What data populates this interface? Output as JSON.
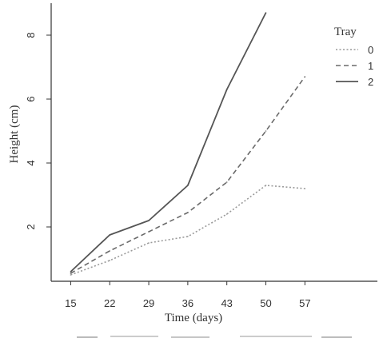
{
  "chart_data": {
    "type": "line",
    "title": "",
    "xlabel": "Time (days)",
    "ylabel": "Height (cm)",
    "x": [
      15,
      22,
      29,
      36,
      43,
      50,
      57
    ],
    "x_tick_labels": [
      "15",
      "22",
      "29",
      "36",
      "43",
      "50",
      "57"
    ],
    "y_ticks": [
      2,
      4,
      6,
      8
    ],
    "y_tick_labels": [
      "2",
      "4",
      "6",
      "8"
    ],
    "xlim": [
      11.5,
      70
    ],
    "ylim": [
      0.3,
      9
    ],
    "grid": false,
    "legend": {
      "title": "Tray",
      "placement": "right"
    },
    "series": [
      {
        "name": "0",
        "line_style": "dotted",
        "color": "#9a9a9a",
        "x": [
          15,
          22,
          29,
          36,
          43,
          50,
          57
        ],
        "values": [
          0.5,
          0.95,
          1.5,
          1.7,
          2.4,
          3.3,
          3.2
        ]
      },
      {
        "name": "1",
        "line_style": "dashed",
        "color": "#6a6a6a",
        "x": [
          15,
          22,
          29,
          36,
          43,
          50,
          57
        ],
        "values": [
          0.55,
          1.25,
          1.85,
          2.45,
          3.4,
          5.0,
          6.7
        ]
      },
      {
        "name": "2",
        "line_style": "solid",
        "color": "#555555",
        "x": [
          15,
          22,
          29,
          36,
          43,
          50
        ],
        "values": [
          0.6,
          1.75,
          2.2,
          3.3,
          6.3,
          8.7
        ]
      }
    ]
  }
}
